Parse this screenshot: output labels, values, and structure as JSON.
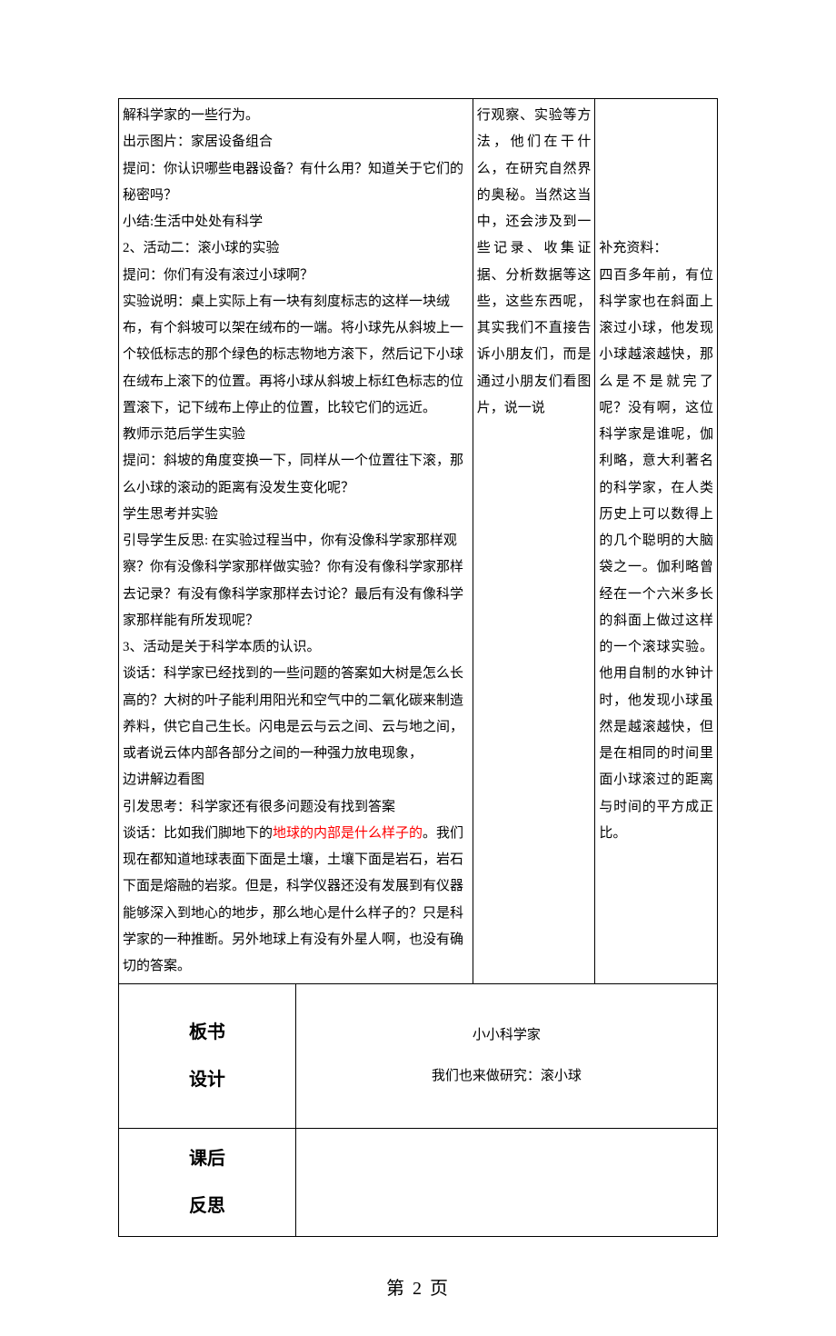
{
  "row1": {
    "main": "解科学家的一些行为。\n出示图片：家居设备组合\n提问：你认识哪些电器设备？有什么用？知道关于它们的秘密吗？\n小结:生活中处处有科学\n2、活动二：滚小球的实验\n提问：你们有没有滚过小球啊？\n实验说明：桌上实际上有一块有刻度标志的这样一块绒布，有个斜坡可以架在绒布的一端。将小球先从斜坡上一个较低标志的那个绿色的标志物地方滚下，然后记下小球在绒布上滚下的位置。再将小球从斜坡上标红色标志的位置滚下，记下绒布上停止的位置，比较它们的远近。\n教师示范后学生实验\n提问：斜坡的角度变换一下，同样从一个位置往下滚，那么小球的滚动的距离有没发生变化呢？\n学生思考并实验\n引导学生反思: 在实验过程当中，你有没像科学家那样观察？你有没像科学家那样做实验？你有没有像科学家那样去记录？有没有像科学家那样去讨论？最后有没有像科学家那样能有所发现呢？\n3、活动是关于科学本质的认识。\n谈话：科学家已经找到的一些问题的答案如大树是怎么长高的？大树的叶子能利用阳光和空气中的二氧化碳来制造养料，供它自己生长。闪电是云与云之间、云与地之间，或者说云体内部各部分之间的一种强力放电现象，\n边讲解边看图\n引发思考：科学家还有很多问题没有找到答案",
    "main_tail_pre": "谈话：比如我们脚地下的",
    "main_red": "地球的内部是什么样子的",
    "main_tail_post": "。我们现在都知道地球表面下面是土壤，土壤下面是岩石，岩石下面是熔融的岩浆。但是，科学仪器还没有发展到有仪器能够深入到地心的地步，那么地心是什么样子的？只是科学家的一种推断。另外地球上有没有外星人啊，也没有确切的答案。",
    "mid": "行观察、实验等方法，他们在干什么，在研究自然界的奥秘。当然这当中，还会涉及到一些记录、收集证据、分析数据等这些，这些东西呢，其实我们不直接告诉小朋友们，而是通过小朋友们看图片，说一说",
    "right": "\n\n\n\n\n补充资料：\n四百多年前，有位科学家也在斜面上滚过小球，他发现小球越滚越快，那么是不是就完了呢？没有啊，这位科学家是谁呢，伽利略，意大利著名的科学家，在人类历史上可以数得上的几个聪明的大脑袋之一。伽利略曾经在一个六米多长的斜面上做过这样的一个滚球实验。他用自制的水钟计时，他发现小球虽然是越滚越快，但是在相同的时间里面小球滚过的距离与时间的平方成正比。"
  },
  "row2": {
    "label": "板书\n设计",
    "content_line1": "小小科学家",
    "content_line2": "我们也来做研究：滚小球"
  },
  "row3": {
    "label": "课后\n反思",
    "content": ""
  },
  "page_number": "第 2 页"
}
